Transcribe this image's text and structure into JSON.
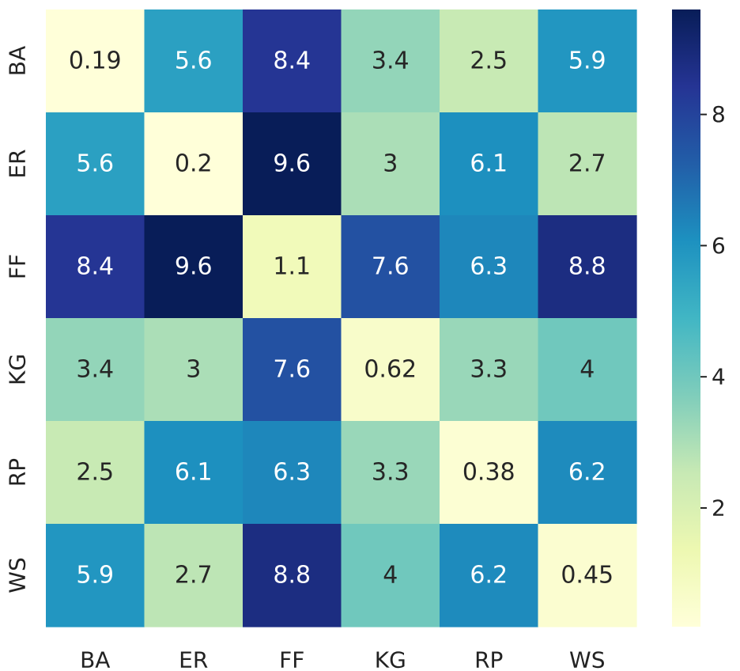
{
  "chart_data": {
    "type": "heatmap",
    "title": "",
    "xlabel": "",
    "ylabel": "",
    "x_categories": [
      "BA",
      "ER",
      "FF",
      "KG",
      "RP",
      "WS"
    ],
    "y_categories": [
      "BA",
      "ER",
      "FF",
      "KG",
      "RP",
      "WS"
    ],
    "values": [
      [
        0.19,
        5.6,
        8.4,
        3.4,
        2.5,
        5.9
      ],
      [
        5.6,
        0.2,
        9.6,
        3,
        6.1,
        2.7
      ],
      [
        8.4,
        9.6,
        1.1,
        7.6,
        6.3,
        8.8
      ],
      [
        3.4,
        3,
        7.6,
        0.62,
        3.3,
        4
      ],
      [
        2.5,
        6.1,
        6.3,
        3.3,
        0.38,
        6.2
      ],
      [
        5.9,
        2.7,
        8.8,
        4,
        6.2,
        0.45
      ]
    ],
    "labels": [
      [
        "0.19",
        "5.6",
        "8.4",
        "3.4",
        "2.5",
        "5.9"
      ],
      [
        "5.6",
        "0.2",
        "9.6",
        "3",
        "6.1",
        "2.7"
      ],
      [
        "8.4",
        "9.6",
        "1.1",
        "7.6",
        "6.3",
        "8.8"
      ],
      [
        "3.4",
        "3",
        "7.6",
        "0.62",
        "3.3",
        "4"
      ],
      [
        "2.5",
        "6.1",
        "6.3",
        "3.3",
        "0.38",
        "6.2"
      ],
      [
        "5.9",
        "2.7",
        "8.8",
        "4",
        "6.2",
        "0.45"
      ]
    ],
    "colormap": "YlGnBu",
    "colorbar": {
      "range": [
        0.19,
        9.6
      ],
      "ticks": [
        2,
        4,
        6,
        8
      ],
      "tick_labels": [
        "2",
        "4",
        "6",
        "8"
      ],
      "position": "right"
    },
    "colors": {
      "dark_text": "#262626",
      "light_text": "#ffffff"
    },
    "grid": false
  }
}
